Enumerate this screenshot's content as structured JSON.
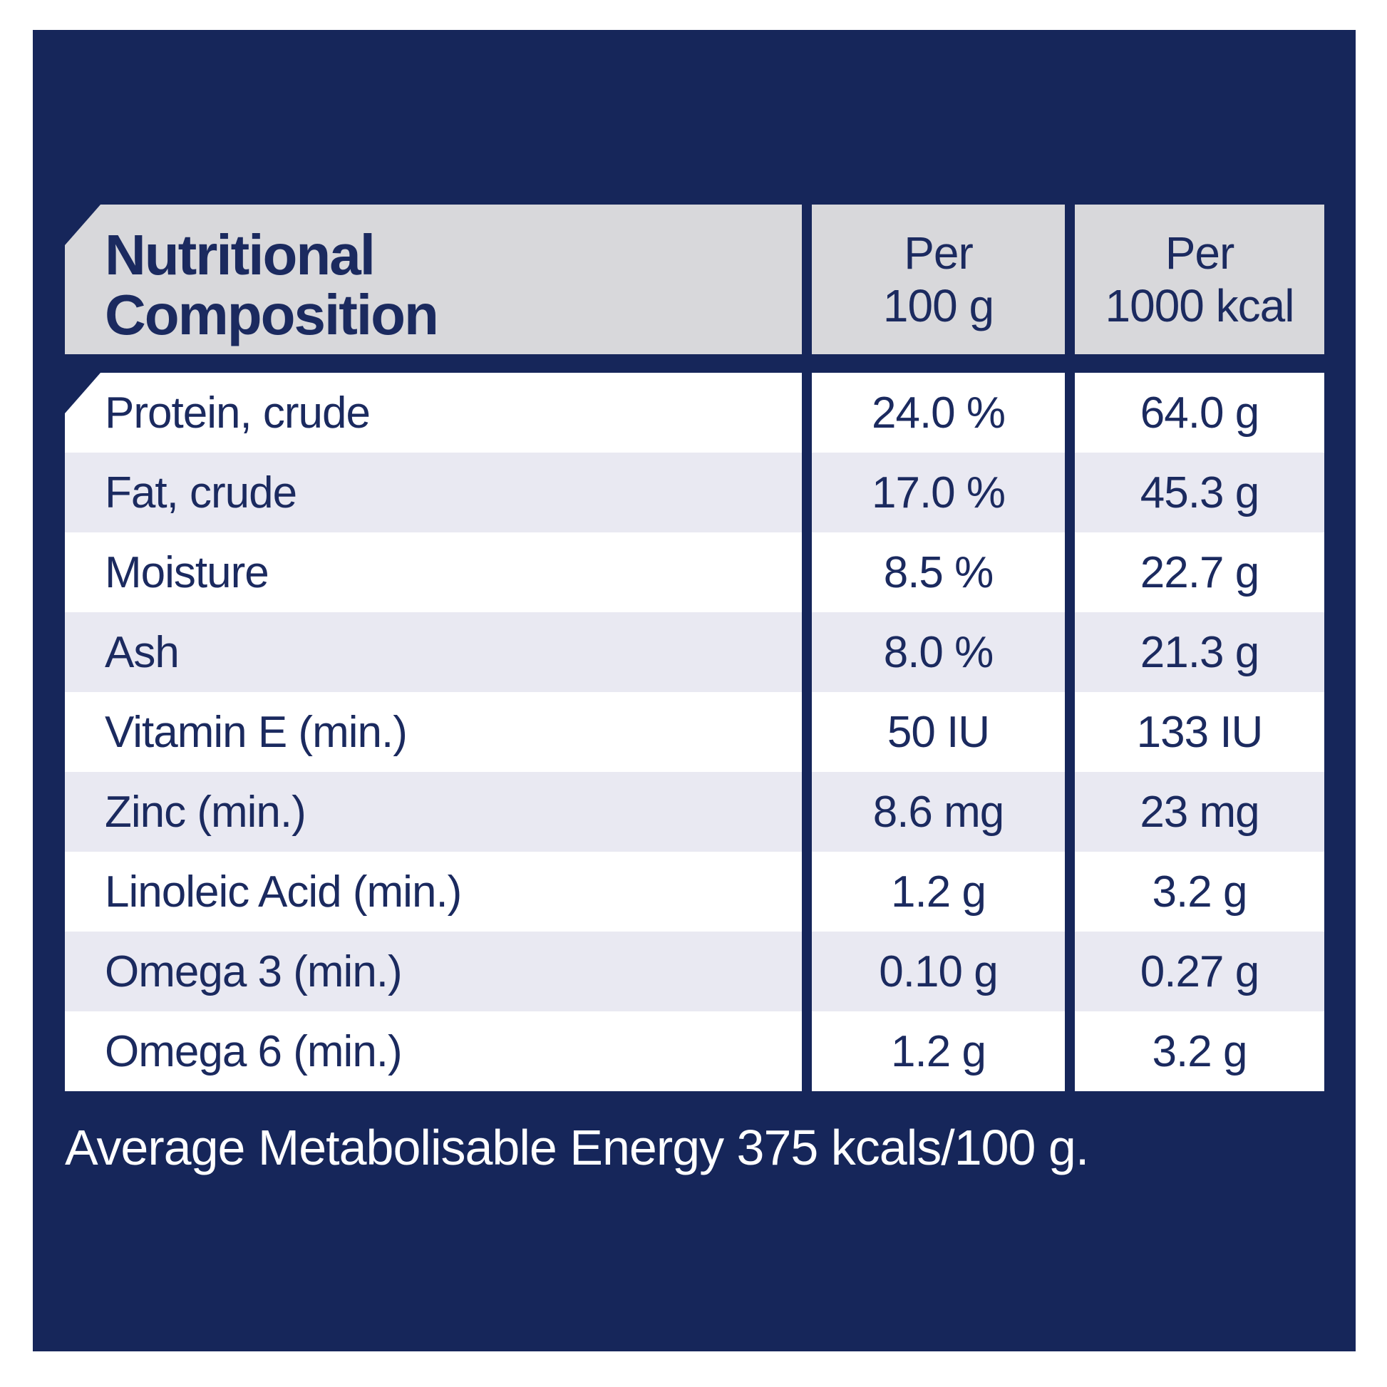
{
  "colors": {
    "panel_navy": "#16265A",
    "header_gray": "#D8D8DB",
    "row_white": "#FFFFFF",
    "row_alt_lavender": "#E9E9F2",
    "text_navy": "#1B2A5F",
    "text_white": "#FFFFFF"
  },
  "table": {
    "header": {
      "title_line1": "Nutritional",
      "title_line2": "Composition",
      "col2_line1": "Per",
      "col2_line2": "100 g",
      "col3_line1": "Per",
      "col3_line2": "1000 kcal"
    },
    "rows": [
      {
        "label": "Protein, crude",
        "per_100g": "24.0 %",
        "per_1000kcal": "64.0 g"
      },
      {
        "label": "Fat, crude",
        "per_100g": "17.0 %",
        "per_1000kcal": "45.3 g"
      },
      {
        "label": "Moisture",
        "per_100g": "8.5 %",
        "per_1000kcal": "22.7 g"
      },
      {
        "label": "Ash",
        "per_100g": "8.0 %",
        "per_1000kcal": "21.3 g"
      },
      {
        "label": "Vitamin E (min.)",
        "per_100g": "50 IU",
        "per_1000kcal": "133 IU"
      },
      {
        "label": "Zinc (min.)",
        "per_100g": "8.6 mg",
        "per_1000kcal": "23 mg"
      },
      {
        "label": "Linoleic Acid (min.)",
        "per_100g": "1.2 g",
        "per_1000kcal": "3.2 g"
      },
      {
        "label": "Omega 3 (min.)",
        "per_100g": "0.10 g",
        "per_1000kcal": "0.27 g"
      },
      {
        "label": "Omega 6 (min.)",
        "per_100g": "1.2 g",
        "per_1000kcal": "3.2 g"
      }
    ]
  },
  "footer": {
    "energy_note": "Average Metabolisable Energy 375 kcals/100 g."
  }
}
